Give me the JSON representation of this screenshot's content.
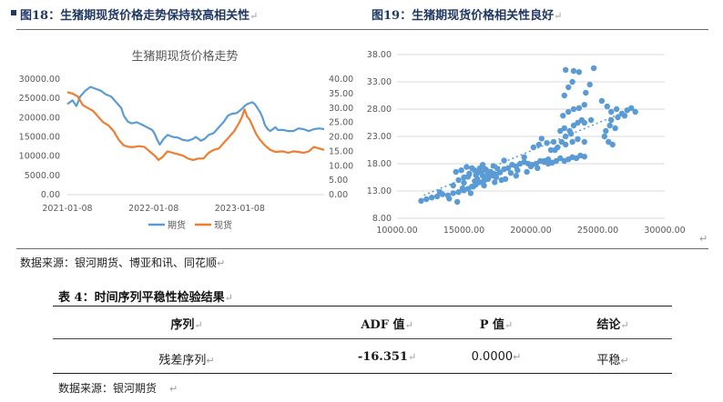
{
  "fig18": {
    "caption": "图18：生猪期现货价格走势保持较高相关性",
    "chart_title": "生猪期现货价格走势"
  },
  "fig19": {
    "caption": "图19：生猪期现货价格相关性良好"
  },
  "source1": "数据来源：银河期货、博亚和讯、同花顺",
  "table": {
    "caption": "表 4：时间序列平稳性检验结果",
    "headers": [
      "序列",
      "ADF 值",
      "P 值",
      "结论"
    ],
    "row": [
      "残差序列",
      "-16.351",
      "0.0000",
      "平稳"
    ]
  },
  "source2": "数据来源：银河期货",
  "colors": {
    "futures": "#5b9bd5",
    "spot": "#ed7d31",
    "scatter": "#5b9bd5",
    "trend": "#5b9bd5",
    "caption": "#1f3864"
  },
  "chart_data": [
    {
      "type": "line",
      "title": "生猪期现货价格走势",
      "x_ticks": [
        "2021-01-08",
        "2022-01-08",
        "2023-01-08"
      ],
      "x_range": [
        "2021-01-08",
        "2023-12-31"
      ],
      "y_left_ticks": [
        "0.00",
        "5000.00",
        "10000.00",
        "15000.00",
        "20000.00",
        "25000.00",
        "30000.00"
      ],
      "y_left_range": [
        0,
        30000
      ],
      "y_right_ticks": [
        "0.00",
        "5.00",
        "10.00",
        "15.00",
        "20.00",
        "25.00",
        "30.00",
        "35.00",
        "40.00"
      ],
      "y_right_range": [
        0,
        40
      ],
      "legend_position": "bottom",
      "series": [
        {
          "name": "期货",
          "axis": "left",
          "color": "#5b9bd5",
          "points": [
            [
              0,
              23500
            ],
            [
              0.02,
              24500
            ],
            [
              0.035,
              23000
            ],
            [
              0.05,
              25500
            ],
            [
              0.07,
              27000
            ],
            [
              0.09,
              28000
            ],
            [
              0.11,
              27500
            ],
            [
              0.13,
              27000
            ],
            [
              0.15,
              26000
            ],
            [
              0.17,
              25500
            ],
            [
              0.19,
              24000
            ],
            [
              0.21,
              22500
            ],
            [
              0.22,
              20500
            ],
            [
              0.235,
              19000
            ],
            [
              0.25,
              18500
            ],
            [
              0.27,
              18800
            ],
            [
              0.29,
              18200
            ],
            [
              0.31,
              17500
            ],
            [
              0.33,
              16800
            ],
            [
              0.34,
              15800
            ],
            [
              0.35,
              14200
            ],
            [
              0.36,
              13000
            ],
            [
              0.375,
              14500
            ],
            [
              0.39,
              15500
            ],
            [
              0.41,
              15000
            ],
            [
              0.43,
              14800
            ],
            [
              0.45,
              14200
            ],
            [
              0.47,
              14000
            ],
            [
              0.49,
              14500
            ],
            [
              0.5,
              15000
            ],
            [
              0.51,
              14500
            ],
            [
              0.52,
              14000
            ],
            [
              0.535,
              14500
            ],
            [
              0.55,
              15500
            ],
            [
              0.57,
              16000
            ],
            [
              0.59,
              17500
            ],
            [
              0.61,
              19000
            ],
            [
              0.625,
              20500
            ],
            [
              0.64,
              21000
            ],
            [
              0.66,
              21200
            ],
            [
              0.675,
              22000
            ],
            [
              0.69,
              23000
            ],
            [
              0.7,
              23500
            ],
            [
              0.72,
              24000
            ],
            [
              0.73,
              23500
            ],
            [
              0.74,
              22500
            ],
            [
              0.75,
              21500
            ],
            [
              0.76,
              20000
            ],
            [
              0.77,
              18000
            ],
            [
              0.78,
              17000
            ],
            [
              0.79,
              16500
            ],
            [
              0.8,
              17000
            ],
            [
              0.81,
              17500
            ],
            [
              0.82,
              16800
            ],
            [
              0.84,
              16800
            ],
            [
              0.86,
              16500
            ],
            [
              0.88,
              16500
            ],
            [
              0.9,
              17200
            ],
            [
              0.92,
              17000
            ],
            [
              0.94,
              16500
            ],
            [
              0.96,
              17000
            ],
            [
              0.98,
              17200
            ],
            [
              1,
              17000
            ]
          ]
        },
        {
          "name": "现货",
          "axis": "right",
          "color": "#ed7d31",
          "points": [
            [
              0,
              35.5
            ],
            [
              0.02,
              35
            ],
            [
              0.04,
              34
            ],
            [
              0.06,
              31
            ],
            [
              0.08,
              30
            ],
            [
              0.1,
              29
            ],
            [
              0.12,
              27
            ],
            [
              0.14,
              25
            ],
            [
              0.16,
              24
            ],
            [
              0.18,
              22
            ],
            [
              0.2,
              19
            ],
            [
              0.22,
              17
            ],
            [
              0.24,
              16.5
            ],
            [
              0.26,
              16.5
            ],
            [
              0.28,
              16.8
            ],
            [
              0.3,
              16.5
            ],
            [
              0.32,
              15
            ],
            [
              0.34,
              13.5
            ],
            [
              0.355,
              12
            ],
            [
              0.37,
              13
            ],
            [
              0.39,
              15
            ],
            [
              0.41,
              14.5
            ],
            [
              0.43,
              14
            ],
            [
              0.45,
              13.5
            ],
            [
              0.47,
              12.5
            ],
            [
              0.49,
              12
            ],
            [
              0.51,
              12.5
            ],
            [
              0.53,
              12.5
            ],
            [
              0.55,
              14.5
            ],
            [
              0.57,
              15.5
            ],
            [
              0.59,
              16
            ],
            [
              0.61,
              18
            ],
            [
              0.63,
              20
            ],
            [
              0.65,
              22
            ],
            [
              0.67,
              25
            ],
            [
              0.68,
              27
            ],
            [
              0.69,
              29.5
            ],
            [
              0.7,
              27
            ],
            [
              0.71,
              26
            ],
            [
              0.72,
              24
            ],
            [
              0.735,
              21
            ],
            [
              0.75,
              19
            ],
            [
              0.77,
              17
            ],
            [
              0.79,
              15.5
            ],
            [
              0.81,
              14.8
            ],
            [
              0.84,
              15
            ],
            [
              0.86,
              14.5
            ],
            [
              0.88,
              15
            ],
            [
              0.9,
              14.8
            ],
            [
              0.92,
              14.5
            ],
            [
              0.94,
              15
            ],
            [
              0.96,
              16.5
            ],
            [
              0.98,
              16
            ],
            [
              1,
              15.5
            ]
          ]
        }
      ]
    },
    {
      "type": "scatter",
      "x_ticks": [
        "10000.00",
        "15000.00",
        "20000.00",
        "25000.00",
        "30000.00"
      ],
      "x_range": [
        10000,
        30000
      ],
      "y_ticks": [
        "8.00",
        "13.00",
        "18.00",
        "23.00",
        "28.00",
        "33.00",
        "38.00"
      ],
      "y_range": [
        8,
        38
      ],
      "trendline": [
        [
          12000,
          12.2
        ],
        [
          27000,
          27.5
        ]
      ],
      "points": [
        [
          11800,
          11.2
        ],
        [
          12200,
          11.5
        ],
        [
          12600,
          11.8
        ],
        [
          13000,
          12.0
        ],
        [
          13400,
          12.4
        ],
        [
          13800,
          12.2
        ],
        [
          14200,
          12.6
        ],
        [
          14600,
          12.8
        ],
        [
          15000,
          13.1
        ],
        [
          15300,
          13.4
        ],
        [
          15600,
          13.8
        ],
        [
          15900,
          14.2
        ],
        [
          16200,
          14.6
        ],
        [
          16500,
          14.9
        ],
        [
          16800,
          15.2
        ],
        [
          17100,
          15.8
        ],
        [
          17400,
          16.0
        ],
        [
          17700,
          16.4
        ],
        [
          18000,
          17.0
        ],
        [
          18300,
          17.2
        ],
        [
          18600,
          17.8
        ],
        [
          18900,
          17.5
        ],
        [
          19200,
          18.0
        ],
        [
          19500,
          18.3
        ],
        [
          19800,
          18.0
        ],
        [
          20100,
          17.8
        ],
        [
          20400,
          18.0
        ],
        [
          20700,
          18.5
        ],
        [
          21000,
          18.5
        ],
        [
          21300,
          18.0
        ],
        [
          21600,
          18.2
        ],
        [
          21900,
          18.5
        ],
        [
          22200,
          19.0
        ],
        [
          22500,
          18.5
        ],
        [
          22800,
          18.8
        ],
        [
          23100,
          19.2
        ],
        [
          23400,
          19.0
        ],
        [
          23700,
          19.5
        ],
        [
          24000,
          19.3
        ],
        [
          14600,
          15.0
        ],
        [
          15000,
          15.5
        ],
        [
          15400,
          16.2
        ],
        [
          15800,
          16.8
        ],
        [
          16200,
          17.2
        ],
        [
          16600,
          17.0
        ],
        [
          17000,
          16.5
        ],
        [
          17400,
          15.5
        ],
        [
          17800,
          15.0
        ],
        [
          14400,
          16.5
        ],
        [
          14800,
          16.8
        ],
        [
          15200,
          17.4
        ],
        [
          15600,
          17.2
        ],
        [
          16000,
          16.4
        ],
        [
          16400,
          15.8
        ],
        [
          16800,
          16.0
        ],
        [
          17200,
          16.2
        ],
        [
          14200,
          14.0
        ],
        [
          15000,
          14.5
        ],
        [
          15800,
          14.8
        ],
        [
          16600,
          15.5
        ],
        [
          14900,
          13.5
        ],
        [
          15700,
          13.8
        ],
        [
          16500,
          14.0
        ],
        [
          17300,
          14.6
        ],
        [
          18100,
          15.2
        ],
        [
          18900,
          15.8
        ],
        [
          19700,
          16.5
        ],
        [
          20500,
          17.2
        ],
        [
          21300,
          18.8
        ],
        [
          20200,
          21.0
        ],
        [
          20600,
          21.5
        ],
        [
          21200,
          21.8
        ],
        [
          21700,
          22.0
        ],
        [
          20800,
          22.6
        ],
        [
          21800,
          20.5
        ],
        [
          22300,
          22.0
        ],
        [
          22600,
          23.0
        ],
        [
          22900,
          24.0
        ],
        [
          23200,
          25.0
        ],
        [
          23500,
          25.5
        ],
        [
          23800,
          26.0
        ],
        [
          22400,
          26.8
        ],
        [
          22800,
          27.5
        ],
        [
          23200,
          28.0
        ],
        [
          23600,
          28.2
        ],
        [
          24000,
          28.8
        ],
        [
          22500,
          24.5
        ],
        [
          23000,
          23.5
        ],
        [
          23500,
          22.5
        ],
        [
          24000,
          22.0
        ],
        [
          22200,
          24.0
        ],
        [
          22600,
          21.5
        ],
        [
          23100,
          22.0
        ],
        [
          22500,
          30.5
        ],
        [
          22800,
          32.0
        ],
        [
          23100,
          33.0
        ],
        [
          22600,
          35.2
        ],
        [
          23200,
          35.0
        ],
        [
          23600,
          34.8
        ],
        [
          24100,
          31.0
        ],
        [
          24400,
          32.5
        ],
        [
          24700,
          35.5
        ],
        [
          25300,
          29.5
        ],
        [
          25700,
          28.5
        ],
        [
          26000,
          27.5
        ],
        [
          26400,
          28.0
        ],
        [
          26800,
          27.2
        ],
        [
          27200,
          27.8
        ],
        [
          27500,
          28.2
        ],
        [
          27800,
          27.5
        ],
        [
          26000,
          26.0
        ],
        [
          26500,
          26.5
        ],
        [
          27000,
          26.8
        ],
        [
          25500,
          23.0
        ],
        [
          25800,
          22.0
        ],
        [
          26100,
          21.5
        ],
        [
          25600,
          24.0
        ],
        [
          26300,
          24.5
        ],
        [
          25900,
          25.0
        ],
        [
          19500,
          19.2
        ],
        [
          18000,
          18.6
        ],
        [
          17200,
          17.6
        ],
        [
          16400,
          17.8
        ],
        [
          16000,
          15.2
        ],
        [
          15500,
          12.6
        ],
        [
          14500,
          11.0
        ],
        [
          13900,
          11.6
        ],
        [
          13200,
          12.8
        ],
        [
          15300,
          15.6
        ],
        [
          15900,
          15.9
        ],
        [
          16300,
          16.3
        ],
        [
          16700,
          16.7
        ],
        [
          17500,
          17.1
        ],
        [
          18500,
          16.3
        ],
        [
          19000,
          16.8
        ],
        [
          20000,
          17.5
        ],
        [
          21000,
          18.3
        ],
        [
          24000,
          25.5
        ],
        [
          24500,
          26.0
        ],
        [
          21500,
          20.5
        ],
        [
          22000,
          21.0
        ]
      ]
    }
  ]
}
